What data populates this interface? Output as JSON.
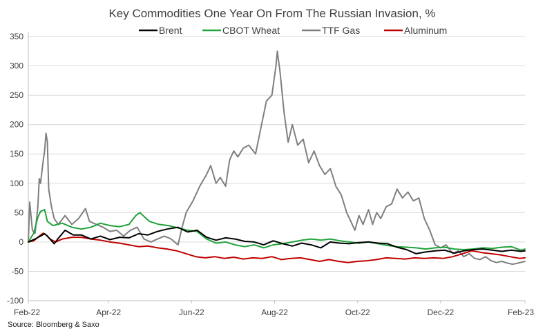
{
  "chart_data": {
    "type": "line",
    "title": "Key Commodities One Year On From The Russian Invasion, %",
    "source": "Source: Bloomberg & Saxo",
    "xlabel": "",
    "ylabel": "",
    "ylim": [
      -100,
      350
    ],
    "yticks": [
      350,
      300,
      250,
      200,
      150,
      100,
      50,
      0,
      -50,
      -100
    ],
    "xrange": [
      "2022-02-24",
      "2023-02-24"
    ],
    "xticks": [
      {
        "date": "2022-02-24",
        "label": "Feb-22"
      },
      {
        "date": "2022-04-24",
        "label": "Apr-22"
      },
      {
        "date": "2022-06-24",
        "label": "Jun-22"
      },
      {
        "date": "2022-08-24",
        "label": "Aug-22"
      },
      {
        "date": "2022-10-24",
        "label": "Oct-22"
      },
      {
        "date": "2022-12-24",
        "label": "Dec-22"
      },
      {
        "date": "2023-02-24",
        "label": "Feb-23"
      }
    ],
    "grid": true,
    "legend": "top",
    "series": [
      {
        "name": "Brent",
        "color": "#000000",
        "points": [
          [
            "2022-02-24",
            0
          ],
          [
            "2022-03-01",
            5
          ],
          [
            "2022-03-08",
            14
          ],
          [
            "2022-03-10",
            10
          ],
          [
            "2022-03-15",
            -3
          ],
          [
            "2022-03-18",
            6
          ],
          [
            "2022-03-23",
            20
          ],
          [
            "2022-03-29",
            12
          ],
          [
            "2022-04-04",
            12
          ],
          [
            "2022-04-11",
            5
          ],
          [
            "2022-04-18",
            10
          ],
          [
            "2022-04-25",
            4
          ],
          [
            "2022-05-02",
            8
          ],
          [
            "2022-05-09",
            7
          ],
          [
            "2022-05-16",
            14
          ],
          [
            "2022-05-23",
            12
          ],
          [
            "2022-05-30",
            18
          ],
          [
            "2022-06-06",
            22
          ],
          [
            "2022-06-14",
            25
          ],
          [
            "2022-06-21",
            17
          ],
          [
            "2022-06-28",
            20
          ],
          [
            "2022-07-05",
            8
          ],
          [
            "2022-07-12",
            3
          ],
          [
            "2022-07-19",
            7
          ],
          [
            "2022-07-26",
            5
          ],
          [
            "2022-08-02",
            1
          ],
          [
            "2022-08-09",
            0
          ],
          [
            "2022-08-16",
            -5
          ],
          [
            "2022-08-23",
            2
          ],
          [
            "2022-08-30",
            -3
          ],
          [
            "2022-09-06",
            -7
          ],
          [
            "2022-09-13",
            -2
          ],
          [
            "2022-09-20",
            -5
          ],
          [
            "2022-09-27",
            -10
          ],
          [
            "2022-10-04",
            0
          ],
          [
            "2022-10-11",
            -2
          ],
          [
            "2022-10-18",
            -3
          ],
          [
            "2022-10-25",
            -1
          ],
          [
            "2022-11-01",
            0
          ],
          [
            "2022-11-08",
            -2
          ],
          [
            "2022-11-15",
            -3
          ],
          [
            "2022-11-22",
            -9
          ],
          [
            "2022-11-29",
            -13
          ],
          [
            "2022-12-06",
            -20
          ],
          [
            "2022-12-13",
            -17
          ],
          [
            "2022-12-20",
            -15
          ],
          [
            "2022-12-27",
            -14
          ],
          [
            "2023-01-03",
            -19
          ],
          [
            "2023-01-10",
            -15
          ],
          [
            "2023-01-17",
            -13
          ],
          [
            "2023-01-24",
            -12
          ],
          [
            "2023-01-31",
            -14
          ],
          [
            "2023-02-07",
            -16
          ],
          [
            "2023-02-14",
            -14
          ],
          [
            "2023-02-21",
            -16
          ],
          [
            "2023-02-24",
            -15
          ]
        ]
      },
      {
        "name": "CBOT Wheat",
        "color": "#1fa33a",
        "points": [
          [
            "2022-02-24",
            0
          ],
          [
            "2022-02-28",
            15
          ],
          [
            "2022-03-03",
            42
          ],
          [
            "2022-03-05",
            52
          ],
          [
            "2022-03-08",
            55
          ],
          [
            "2022-03-10",
            35
          ],
          [
            "2022-03-14",
            28
          ],
          [
            "2022-03-21",
            32
          ],
          [
            "2022-03-28",
            25
          ],
          [
            "2022-04-04",
            22
          ],
          [
            "2022-04-11",
            25
          ],
          [
            "2022-04-18",
            32
          ],
          [
            "2022-04-25",
            28
          ],
          [
            "2022-05-02",
            26
          ],
          [
            "2022-05-09",
            30
          ],
          [
            "2022-05-14",
            45
          ],
          [
            "2022-05-17",
            50
          ],
          [
            "2022-05-24",
            35
          ],
          [
            "2022-05-31",
            30
          ],
          [
            "2022-06-07",
            28
          ],
          [
            "2022-06-14",
            24
          ],
          [
            "2022-06-21",
            20
          ],
          [
            "2022-06-28",
            18
          ],
          [
            "2022-07-05",
            5
          ],
          [
            "2022-07-12",
            -2
          ],
          [
            "2022-07-19",
            0
          ],
          [
            "2022-07-26",
            -5
          ],
          [
            "2022-08-02",
            -8
          ],
          [
            "2022-08-09",
            -5
          ],
          [
            "2022-08-16",
            -10
          ],
          [
            "2022-08-23",
            -5
          ],
          [
            "2022-08-30",
            -3
          ],
          [
            "2022-09-06",
            0
          ],
          [
            "2022-09-13",
            3
          ],
          [
            "2022-09-20",
            5
          ],
          [
            "2022-09-27",
            3
          ],
          [
            "2022-10-04",
            5
          ],
          [
            "2022-10-11",
            2
          ],
          [
            "2022-10-18",
            0
          ],
          [
            "2022-10-25",
            -2
          ],
          [
            "2022-11-01",
            0
          ],
          [
            "2022-11-08",
            -3
          ],
          [
            "2022-11-15",
            -6
          ],
          [
            "2022-11-22",
            -8
          ],
          [
            "2022-11-29",
            -9
          ],
          [
            "2022-12-06",
            -10
          ],
          [
            "2022-12-13",
            -12
          ],
          [
            "2022-12-20",
            -10
          ],
          [
            "2022-12-27",
            -9
          ],
          [
            "2023-01-03",
            -12
          ],
          [
            "2023-01-10",
            -13
          ],
          [
            "2023-01-17",
            -12
          ],
          [
            "2023-01-24",
            -10
          ],
          [
            "2023-01-31",
            -11
          ],
          [
            "2023-02-07",
            -9
          ],
          [
            "2023-02-14",
            -8
          ],
          [
            "2023-02-21",
            -14
          ],
          [
            "2023-02-24",
            -12
          ]
        ]
      },
      {
        "name": "TTF Gas",
        "color": "#7f7f7f",
        "points": [
          [
            "2022-02-24",
            0
          ],
          [
            "2022-02-25",
            68
          ],
          [
            "2022-02-27",
            20
          ],
          [
            "2022-03-01",
            15
          ],
          [
            "2022-03-03",
            60
          ],
          [
            "2022-03-04",
            108
          ],
          [
            "2022-03-05",
            100
          ],
          [
            "2022-03-07",
            140
          ],
          [
            "2022-03-08",
            155
          ],
          [
            "2022-03-09",
            185
          ],
          [
            "2022-03-10",
            170
          ],
          [
            "2022-03-11",
            90
          ],
          [
            "2022-03-13",
            60
          ],
          [
            "2022-03-15",
            40
          ],
          [
            "2022-03-18",
            30
          ],
          [
            "2022-03-23",
            45
          ],
          [
            "2022-03-28",
            30
          ],
          [
            "2022-04-02",
            40
          ],
          [
            "2022-04-07",
            57
          ],
          [
            "2022-04-10",
            35
          ],
          [
            "2022-04-15",
            30
          ],
          [
            "2022-04-20",
            25
          ],
          [
            "2022-04-25",
            18
          ],
          [
            "2022-04-30",
            20
          ],
          [
            "2022-05-05",
            10
          ],
          [
            "2022-05-10",
            20
          ],
          [
            "2022-05-15",
            25
          ],
          [
            "2022-05-20",
            5
          ],
          [
            "2022-05-25",
            0
          ],
          [
            "2022-05-30",
            5
          ],
          [
            "2022-06-04",
            10
          ],
          [
            "2022-06-09",
            5
          ],
          [
            "2022-06-14",
            -5
          ],
          [
            "2022-06-17",
            25
          ],
          [
            "2022-06-20",
            50
          ],
          [
            "2022-06-25",
            70
          ],
          [
            "2022-06-30",
            95
          ],
          [
            "2022-07-05",
            115
          ],
          [
            "2022-07-08",
            130
          ],
          [
            "2022-07-12",
            100
          ],
          [
            "2022-07-15",
            110
          ],
          [
            "2022-07-19",
            95
          ],
          [
            "2022-07-22",
            140
          ],
          [
            "2022-07-25",
            155
          ],
          [
            "2022-07-28",
            145
          ],
          [
            "2022-08-01",
            160
          ],
          [
            "2022-08-05",
            165
          ],
          [
            "2022-08-10",
            150
          ],
          [
            "2022-08-14",
            195
          ],
          [
            "2022-08-18",
            240
          ],
          [
            "2022-08-22",
            250
          ],
          [
            "2022-08-25",
            300
          ],
          [
            "2022-08-26",
            325
          ],
          [
            "2022-08-28",
            290
          ],
          [
            "2022-08-31",
            220
          ],
          [
            "2022-09-03",
            170
          ],
          [
            "2022-09-06",
            200
          ],
          [
            "2022-09-10",
            165
          ],
          [
            "2022-09-14",
            175
          ],
          [
            "2022-09-18",
            135
          ],
          [
            "2022-09-22",
            155
          ],
          [
            "2022-09-26",
            130
          ],
          [
            "2022-09-30",
            115
          ],
          [
            "2022-10-04",
            125
          ],
          [
            "2022-10-08",
            95
          ],
          [
            "2022-10-12",
            80
          ],
          [
            "2022-10-16",
            50
          ],
          [
            "2022-10-19",
            35
          ],
          [
            "2022-10-22",
            20
          ],
          [
            "2022-10-25",
            45
          ],
          [
            "2022-10-28",
            30
          ],
          [
            "2022-11-01",
            55
          ],
          [
            "2022-11-04",
            30
          ],
          [
            "2022-11-07",
            50
          ],
          [
            "2022-11-10",
            40
          ],
          [
            "2022-11-14",
            60
          ],
          [
            "2022-11-18",
            65
          ],
          [
            "2022-11-22",
            90
          ],
          [
            "2022-11-26",
            75
          ],
          [
            "2022-11-30",
            85
          ],
          [
            "2022-12-04",
            70
          ],
          [
            "2022-12-08",
            75
          ],
          [
            "2022-12-12",
            40
          ],
          [
            "2022-12-16",
            20
          ],
          [
            "2022-12-20",
            -5
          ],
          [
            "2022-12-24",
            -10
          ],
          [
            "2022-12-28",
            -5
          ],
          [
            "2023-01-02",
            -20
          ],
          [
            "2023-01-06",
            -15
          ],
          [
            "2023-01-10",
            -25
          ],
          [
            "2023-01-14",
            -20
          ],
          [
            "2023-01-18",
            -28
          ],
          [
            "2023-01-22",
            -30
          ],
          [
            "2023-01-26",
            -25
          ],
          [
            "2023-01-30",
            -32
          ],
          [
            "2023-02-03",
            -35
          ],
          [
            "2023-02-07",
            -33
          ],
          [
            "2023-02-11",
            -36
          ],
          [
            "2023-02-15",
            -38
          ],
          [
            "2023-02-19",
            -36
          ],
          [
            "2023-02-24",
            -33
          ]
        ]
      },
      {
        "name": "Aluminum",
        "color": "#c00000",
        "points": [
          [
            "2022-02-24",
            0
          ],
          [
            "2022-02-28",
            2
          ],
          [
            "2022-03-03",
            8
          ],
          [
            "2022-03-07",
            15
          ],
          [
            "2022-03-09",
            12
          ],
          [
            "2022-03-12",
            5
          ],
          [
            "2022-03-16",
            0
          ],
          [
            "2022-03-21",
            5
          ],
          [
            "2022-03-28",
            8
          ],
          [
            "2022-04-04",
            8
          ],
          [
            "2022-04-11",
            5
          ],
          [
            "2022-04-18",
            3
          ],
          [
            "2022-04-25",
            0
          ],
          [
            "2022-05-02",
            -2
          ],
          [
            "2022-05-09",
            -5
          ],
          [
            "2022-05-16",
            -8
          ],
          [
            "2022-05-23",
            -7
          ],
          [
            "2022-05-30",
            -10
          ],
          [
            "2022-06-06",
            -12
          ],
          [
            "2022-06-13",
            -15
          ],
          [
            "2022-06-20",
            -20
          ],
          [
            "2022-06-27",
            -25
          ],
          [
            "2022-07-04",
            -27
          ],
          [
            "2022-07-11",
            -25
          ],
          [
            "2022-07-18",
            -28
          ],
          [
            "2022-07-25",
            -26
          ],
          [
            "2022-08-01",
            -29
          ],
          [
            "2022-08-08",
            -27
          ],
          [
            "2022-08-15",
            -28
          ],
          [
            "2022-08-22",
            -25
          ],
          [
            "2022-08-29",
            -30
          ],
          [
            "2022-09-05",
            -28
          ],
          [
            "2022-09-12",
            -27
          ],
          [
            "2022-09-19",
            -30
          ],
          [
            "2022-09-26",
            -33
          ],
          [
            "2022-10-03",
            -30
          ],
          [
            "2022-10-10",
            -33
          ],
          [
            "2022-10-17",
            -35
          ],
          [
            "2022-10-24",
            -33
          ],
          [
            "2022-10-31",
            -32
          ],
          [
            "2022-11-07",
            -30
          ],
          [
            "2022-11-14",
            -27
          ],
          [
            "2022-11-21",
            -28
          ],
          [
            "2022-11-28",
            -29
          ],
          [
            "2022-12-05",
            -27
          ],
          [
            "2022-12-12",
            -28
          ],
          [
            "2022-12-19",
            -27
          ],
          [
            "2022-12-26",
            -28
          ],
          [
            "2023-01-02",
            -25
          ],
          [
            "2023-01-09",
            -20
          ],
          [
            "2023-01-16",
            -15
          ],
          [
            "2023-01-23",
            -18
          ],
          [
            "2023-01-30",
            -20
          ],
          [
            "2023-02-06",
            -22
          ],
          [
            "2023-02-13",
            -25
          ],
          [
            "2023-02-20",
            -28
          ],
          [
            "2023-02-24",
            -27
          ]
        ]
      }
    ]
  }
}
